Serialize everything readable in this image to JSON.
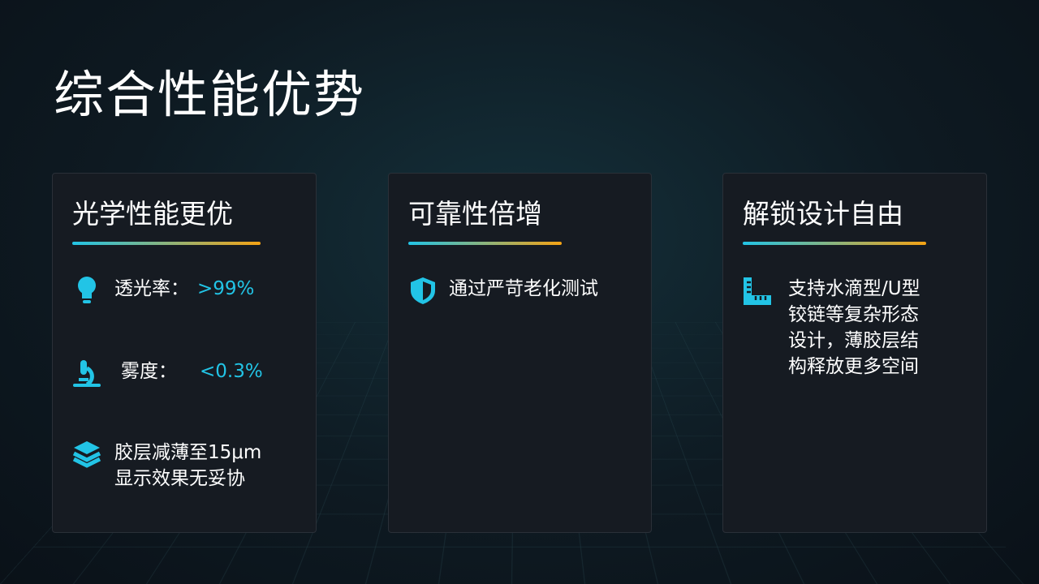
{
  "title": "综合性能优势",
  "colors": {
    "accent": "#22c4e6",
    "gradient_end": "#f5a314"
  },
  "cards": [
    {
      "heading": "光学性能更优",
      "items": [
        {
          "icon": "lightbulb-icon",
          "label": "透光率：",
          "value": ">99%"
        },
        {
          "icon": "microscope-icon",
          "label": "雾度：",
          "value": "<0.3%"
        },
        {
          "icon": "layers-icon",
          "line1": "胶层减薄至15μm",
          "line2": "显示效果无妥协"
        }
      ]
    },
    {
      "heading": "可靠性倍增",
      "items": [
        {
          "icon": "shield-icon",
          "label": "通过严苛老化测试"
        }
      ]
    },
    {
      "heading": "解锁设计自由",
      "items": [
        {
          "icon": "ruler-icon",
          "lines": [
            "支持水滴型/U型",
            "铰链等复杂形态",
            "设计，薄胶层结",
            "构释放更多空间"
          ]
        }
      ]
    }
  ]
}
